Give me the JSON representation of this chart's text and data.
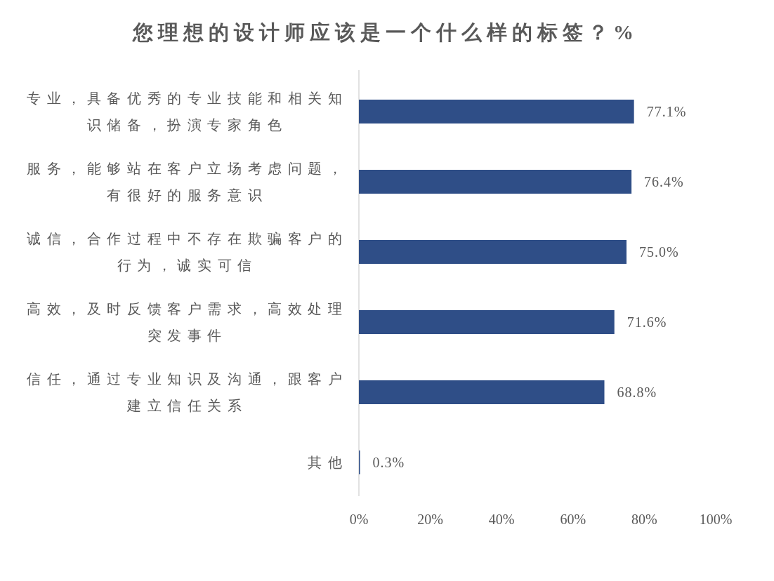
{
  "chart_data": {
    "type": "bar",
    "orientation": "horizontal",
    "title": "您理想的设计师应该是一个什么样的标签？%",
    "categories": [
      "专业，具备优秀的专业技能和相关知识储备，扮演专家角色",
      "服务，能够站在客户立场考虑问题，有很好的服务意识",
      "诚信，合作过程中不存在欺骗客户的行为，诚实可信",
      "高效，及时反馈客户需求，高效处理突发事件",
      "信任，通过专业知识及沟通，跟客户建立信任关系",
      "其他"
    ],
    "values": [
      77.1,
      76.4,
      75.0,
      71.6,
      68.8,
      0.3
    ],
    "color": "#2f4e87",
    "value_labels": [
      "77.1%",
      "76.4%",
      "75.0%",
      "71.6%",
      "68.8%",
      "0.3%"
    ],
    "xlim": [
      0,
      100
    ],
    "xticks": [
      {
        "value": 0,
        "label": "0%"
      },
      {
        "value": 20,
        "label": "20%"
      },
      {
        "value": 40,
        "label": "40%"
      },
      {
        "value": 60,
        "label": "60%"
      },
      {
        "value": 80,
        "label": "80%"
      },
      {
        "value": 100,
        "label": "100%"
      }
    ]
  }
}
